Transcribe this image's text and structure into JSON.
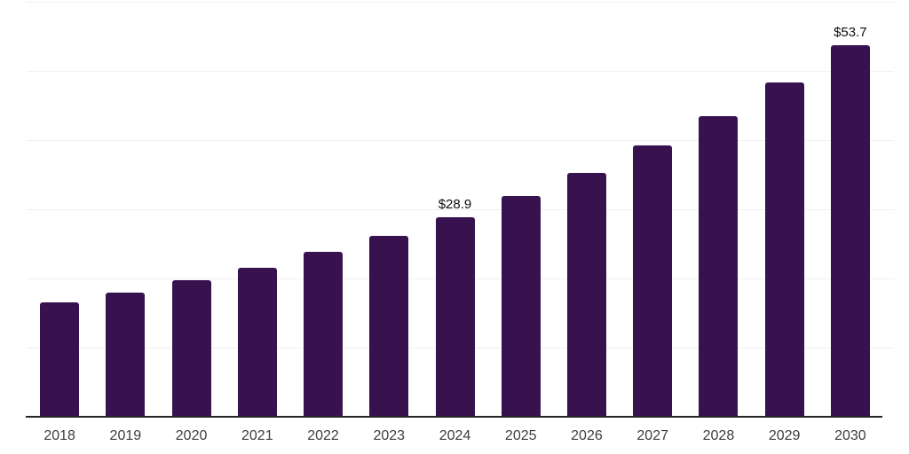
{
  "chart_data": {
    "type": "bar",
    "title": "",
    "xlabel": "",
    "ylabel": "",
    "categories": [
      "2018",
      "2019",
      "2020",
      "2021",
      "2022",
      "2023",
      "2024",
      "2025",
      "2026",
      "2027",
      "2028",
      "2029",
      "2030"
    ],
    "values": [
      16.5,
      18.0,
      19.8,
      21.6,
      23.8,
      26.2,
      28.9,
      31.9,
      35.3,
      39.2,
      43.4,
      48.3,
      53.7
    ],
    "data_labels": {
      "2024": "$28.9",
      "2030": "$53.7"
    },
    "value_prefix": "$",
    "ylim": [
      0,
      60
    ],
    "grid_step": 10,
    "grid": "horizontal",
    "legend": "none",
    "colors": {
      "bar": "#38114F",
      "grid_line": "#f1f1f3",
      "axis_line": "#262626",
      "x_tick_label": "#3d3d3d",
      "data_label": "#0f0f0f",
      "background": "#ffffff"
    }
  }
}
